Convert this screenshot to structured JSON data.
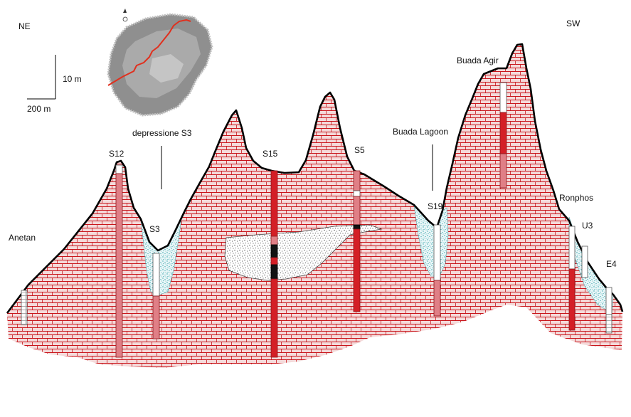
{
  "orientation": {
    "left": "NE",
    "right": "SW"
  },
  "scale": {
    "vertical": "10 m",
    "horizontal": "200 m"
  },
  "features": {
    "depression": "depressione S3",
    "lagoon": "Buada Lagoon",
    "hill": "Buada Agir",
    "ronphos": "Ronphos",
    "anetan": "Anetan"
  },
  "boreholes": [
    "S12",
    "S3",
    "S15",
    "S5",
    "S19",
    "U3",
    "E4"
  ],
  "colors": {
    "brick_fill": "#f4dada",
    "brick_lines": "#c9151b",
    "core_red": "#d41f26",
    "core_pink": "#e07f86",
    "core_black": "#000000",
    "sediment": "#79c7cc",
    "outline": "#000000",
    "route_line": "#e0301e",
    "map_gray": "#8f8f8f"
  },
  "icons": [
    "north-arrow-icon",
    "island-map-inset"
  ]
}
